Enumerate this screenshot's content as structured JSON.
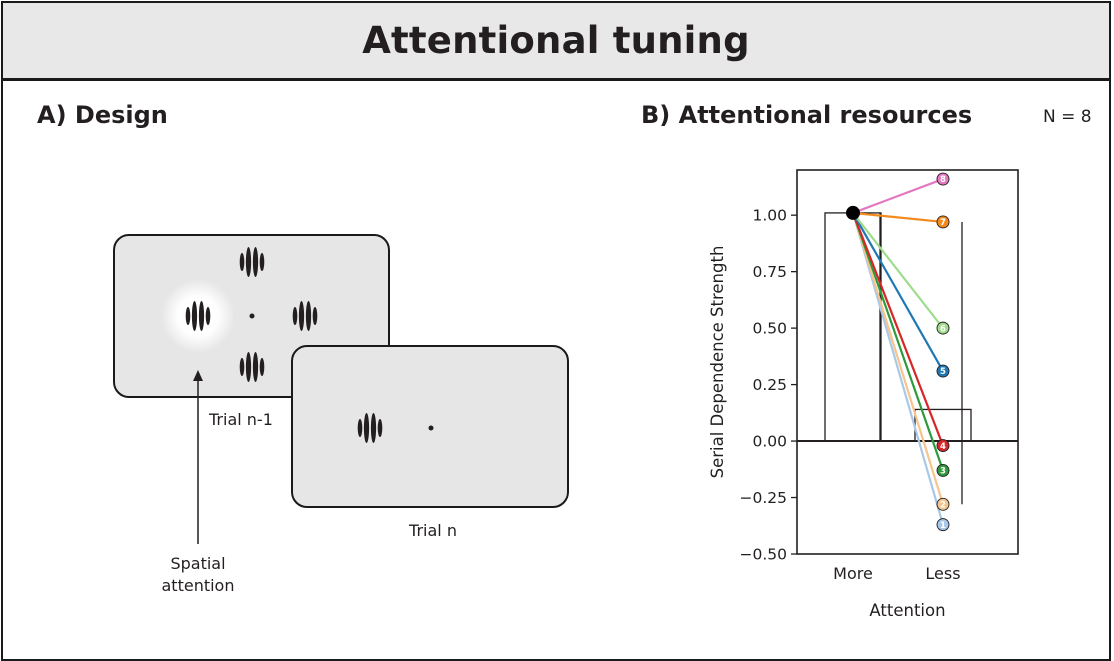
{
  "header": {
    "title": "Attentional tuning"
  },
  "panel_a": {
    "title": "A) Design",
    "trial_prev_label": "Trial n-1",
    "trial_label": "Trial n",
    "arrow_label_line1": "Spatial",
    "arrow_label_line2": "attention"
  },
  "panel_b": {
    "title": "B) Attentional resources",
    "n_label": "N = 8"
  },
  "chart_data": {
    "type": "bar",
    "xlabel": "Attention",
    "ylabel": "Serial Dependence Strength",
    "categories": [
      "More",
      "Less"
    ],
    "ylim": [
      -0.5,
      1.2
    ],
    "yticks": [
      -0.5,
      -0.25,
      0.0,
      0.25,
      0.5,
      0.75,
      1.0
    ],
    "ytick_labels": [
      "−0.50",
      "−0.25",
      "0.00",
      "0.25",
      "0.50",
      "0.75",
      "1.00"
    ],
    "bar_values": [
      1.01,
      0.14
    ],
    "error_bars": [
      {
        "category": "More",
        "low": 0.0,
        "high": 1.01
      },
      {
        "category": "Less",
        "low": -0.28,
        "high": 0.97
      }
    ],
    "participants": [
      {
        "id": "1",
        "more": 1.01,
        "less": -0.37,
        "color": "#a9c8e8"
      },
      {
        "id": "2",
        "more": 1.01,
        "less": -0.28,
        "color": "#f6c48d"
      },
      {
        "id": "3",
        "more": 1.01,
        "less": -0.13,
        "color": "#2e9a3c"
      },
      {
        "id": "4",
        "more": 1.01,
        "less": -0.02,
        "color": "#d62728"
      },
      {
        "id": "5",
        "more": 1.01,
        "less": 0.31,
        "color": "#1f77b4"
      },
      {
        "id": "6",
        "more": 1.01,
        "less": 0.5,
        "color": "#9edc8c"
      },
      {
        "id": "7",
        "more": 1.01,
        "less": 0.97,
        "color": "#f28a1e"
      },
      {
        "id": "8",
        "more": 1.01,
        "less": 1.16,
        "color": "#e377c2"
      }
    ]
  }
}
